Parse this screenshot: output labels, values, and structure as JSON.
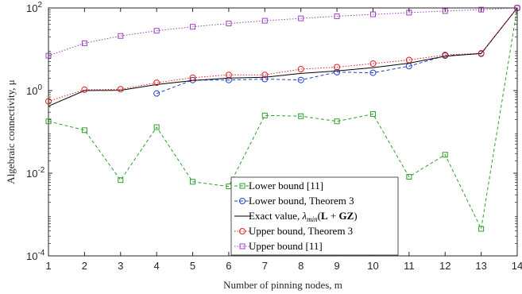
{
  "chart_data": {
    "type": "line",
    "xlabel": "Number of pinning nodes, m",
    "ylabel": "Algebraic connectivity, μ",
    "x": [
      1,
      2,
      3,
      4,
      5,
      6,
      7,
      8,
      9,
      10,
      11,
      12,
      13,
      14
    ],
    "xlim": [
      1,
      14
    ],
    "ylim": [
      0.0001,
      100
    ],
    "yscale": "log",
    "x_ticks": [
      "1",
      "2",
      "3",
      "4",
      "5",
      "6",
      "7",
      "8",
      "9",
      "10",
      "11",
      "12",
      "13",
      "14"
    ],
    "y_ticks": [
      {
        "base": "10",
        "exp": "-4",
        "value": 0.0001
      },
      {
        "base": "10",
        "exp": "-2",
        "value": 0.01
      },
      {
        "base": "10",
        "exp": "0",
        "value": 1
      },
      {
        "base": "10",
        "exp": "2",
        "value": 100
      }
    ],
    "grid": false,
    "legend_position": "bottom-center",
    "series": [
      {
        "name": "Lower bound [11]",
        "color": "#2ca02c",
        "linestyle": "dashed",
        "marker": "square",
        "values": [
          0.18,
          0.11,
          0.0068,
          0.13,
          0.0062,
          0.0048,
          0.25,
          0.24,
          0.18,
          0.27,
          0.0082,
          0.028,
          0.00045,
          100
        ]
      },
      {
        "name": "Lower bound, Theorem 3",
        "color": "#1f3fd6",
        "linestyle": "dashed",
        "marker": "circle",
        "values": [
          null,
          null,
          null,
          0.85,
          1.8,
          1.8,
          1.9,
          1.8,
          2.8,
          2.7,
          3.9,
          7.0,
          7.8,
          100
        ]
      },
      {
        "name_parts": [
          "Exact value, ",
          "λ",
          "min",
          "(",
          "L",
          " + ",
          "GZ",
          ")"
        ],
        "color": "#000000",
        "linestyle": "solid",
        "marker": "none",
        "values": [
          0.42,
          1.0,
          1.02,
          1.4,
          1.75,
          2.0,
          2.1,
          2.6,
          3.0,
          3.6,
          4.6,
          6.8,
          7.9,
          100
        ]
      },
      {
        "name": "Upper bound, Theorem 3",
        "color": "#e02020",
        "linestyle": "dotted",
        "marker": "circle",
        "values": [
          0.55,
          1.05,
          1.08,
          1.55,
          2.05,
          2.4,
          2.4,
          3.3,
          3.7,
          4.5,
          5.5,
          7.3,
          8.0,
          100
        ]
      },
      {
        "name": "Upper bound [11]",
        "color": "#a040c0",
        "linestyle": "dotted",
        "marker": "square",
        "values": [
          7.0,
          14.0,
          21.0,
          28.0,
          35.0,
          42.0,
          49.0,
          56.0,
          63.0,
          70.0,
          77.0,
          84.0,
          91.0,
          100
        ]
      }
    ]
  }
}
